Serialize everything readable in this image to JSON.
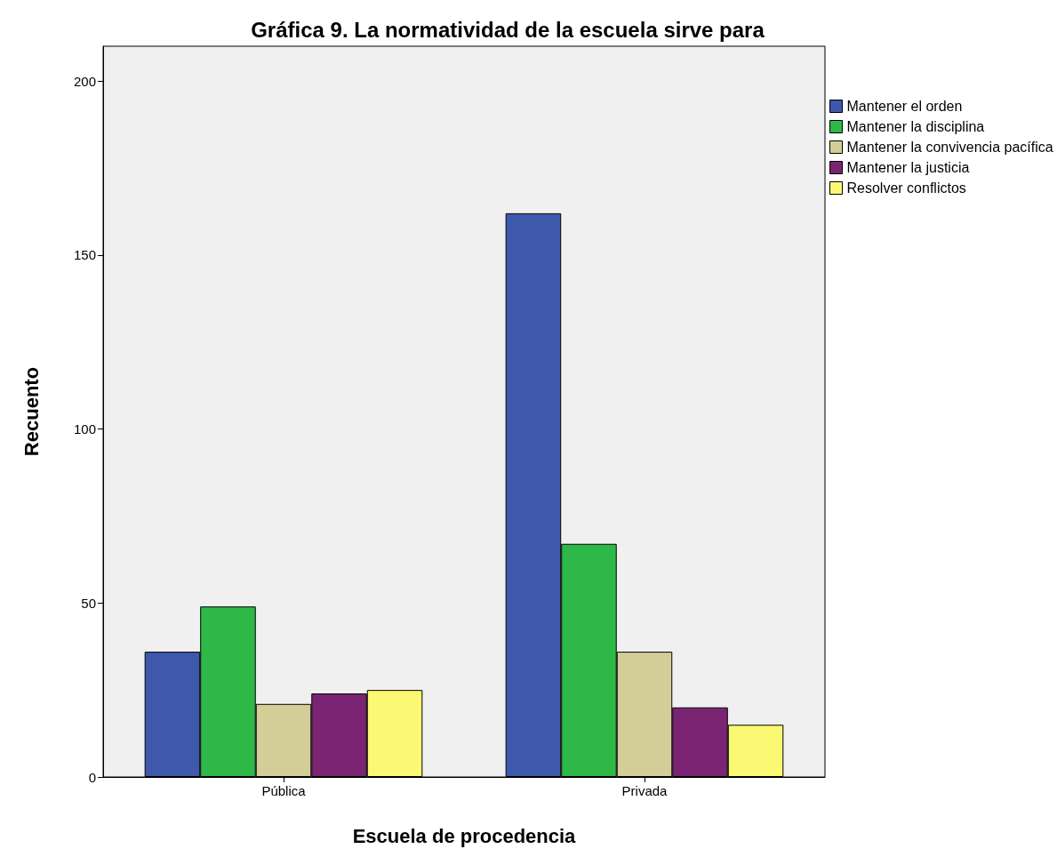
{
  "chart_data": {
    "type": "bar",
    "title": "Gráfica 9. La normatividad de la escuela sirve para",
    "xlabel": "Escuela de procedencia",
    "ylabel": "Recuento",
    "categories": [
      "Pública",
      "Privada"
    ],
    "series": [
      {
        "name": "Mantener el orden",
        "color": "#3e58ac",
        "values": [
          36,
          162
        ]
      },
      {
        "name": "Mantener la disciplina",
        "color": "#2eb848",
        "values": [
          49,
          67
        ]
      },
      {
        "name": "Mantener la convivencia pacífica",
        "color": "#d3ce97",
        "values": [
          21,
          36
        ]
      },
      {
        "name": "Mantener la justicia",
        "color": "#7b2473",
        "values": [
          24,
          20
        ]
      },
      {
        "name": "Resolver conflictos",
        "color": "#fbf873",
        "values": [
          25,
          15
        ]
      }
    ],
    "ylim": [
      0,
      210
    ],
    "yticks": [
      0,
      50,
      100,
      150,
      200
    ],
    "grid": false,
    "legend": "top right"
  }
}
